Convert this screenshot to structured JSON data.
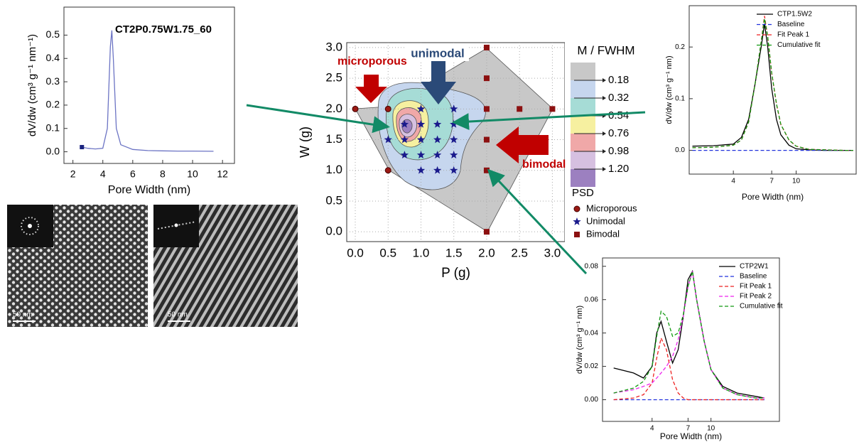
{
  "chart_data": [
    {
      "type": "line",
      "title": "CT2P0.75W1.75_60",
      "x_label": "Pore Width (nm)",
      "y_label": "dV/dw (cm³ g⁻¹ nm⁻¹)",
      "xlim": [
        1.4,
        12.8
      ],
      "ylim": [
        -0.05,
        0.62
      ],
      "xticks": [
        2,
        4,
        6,
        8,
        10,
        12
      ],
      "yticks": [
        {
          "value": 0,
          "label": "0.0"
        },
        0.1,
        0.2,
        0.3,
        0.4,
        0.5
      ],
      "start_marker": "square",
      "x": [
        2.6,
        3.0,
        3.5,
        4.0,
        4.3,
        4.5,
        4.6,
        4.7,
        4.9,
        5.2,
        6,
        7,
        8,
        9,
        10,
        11.4
      ],
      "series": [
        {
          "color": "#6c74c4",
          "values": [
            0.02,
            0.015,
            0.012,
            0.015,
            0.1,
            0.45,
            0.52,
            0.4,
            0.1,
            0.03,
            0.01,
            0.005,
            0.004,
            0.003,
            0.003,
            0.002
          ]
        }
      ]
    },
    {
      "type": "scatter",
      "x_label": "P (g)",
      "y_label": "W (g)",
      "xlim": [
        -0.13,
        3.19
      ],
      "ylim": [
        -0.16,
        3.08
      ],
      "grid": true,
      "xticks": [
        {
          "value": 0,
          "label": "0.0"
        },
        0.5,
        {
          "value": 1,
          "label": "1.0"
        },
        1.5,
        {
          "value": 2,
          "label": "2.0"
        },
        2.5,
        {
          "value": 3,
          "label": "3.0"
        }
      ],
      "yticks": [
        {
          "value": 0,
          "label": "0.0"
        },
        0.5,
        {
          "value": 1,
          "label": "1.0"
        },
        1.5,
        {
          "value": 2,
          "label": "2.0"
        },
        2.5,
        {
          "value": 3,
          "label": "3.0"
        }
      ],
      "legend_title": "PSD",
      "series": [
        {
          "name": "Microporous",
          "marker": "circle",
          "color": "#9a1a14",
          "x": [
            0,
            0.5,
            0.5
          ],
          "values": [
            2,
            2,
            1
          ]
        },
        {
          "name": "Unimodal",
          "marker": "star",
          "color": "#1a1a8c",
          "x": [
            0.5,
            0.75,
            0.75,
            0.75,
            1,
            1,
            1,
            1,
            1,
            1.25,
            1.25,
            1.25,
            1.25,
            1.5,
            1.5,
            1.5,
            1.5,
            1.5
          ],
          "values": [
            1.5,
            1.75,
            1.5,
            1.25,
            2,
            1.75,
            1.5,
            1.25,
            1,
            1.75,
            1.5,
            1.25,
            1,
            2,
            1.75,
            1.5,
            1.25,
            1
          ]
        },
        {
          "name": "Bimodal",
          "marker": "square",
          "color": "#8c1010",
          "x": [
            2,
            2,
            2,
            2,
            2,
            2,
            2.5,
            3
          ],
          "values": [
            3,
            2.5,
            2,
            1.5,
            1,
            0,
            2,
            2
          ]
        }
      ],
      "colorbar": {
        "title": "M / FWHM",
        "levels": [
          0.18,
          0.32,
          0.54,
          0.76,
          0.98,
          {
            "value": 1.2,
            "label": "1.20"
          }
        ],
        "colors": [
          "#c8c8c8",
          "#c6d6ee",
          "#a6dcd6",
          "#f6f0a0",
          "#f0a8a8",
          "#d6c0e0",
          "#9c80c0"
        ]
      },
      "annotations": [
        "unimodal",
        "microporous",
        "bimodal"
      ]
    },
    {
      "type": "line",
      "x_label": "Pore Width (nm)",
      "y_label": "dV/dw (cm³ g⁻¹ nm)",
      "xscale": "log",
      "legend": "upper right",
      "xlim": [
        2.1,
        24
      ],
      "ylim": [
        -0.046,
        0.28
      ],
      "xticks": [
        4,
        7,
        10
      ],
      "yticks": [
        {
          "value": 0,
          "label": "0.0"
        },
        0.1,
        0.2
      ],
      "x": [
        2.2,
        3,
        4,
        4.5,
        5,
        5.5,
        6,
        6.3,
        6.6,
        7,
        7.5,
        8,
        9,
        10,
        12,
        15,
        20,
        23
      ],
      "series": [
        {
          "name": "CTP1.5W2",
          "color": "#000000",
          "dash": false,
          "values": [
            0.008,
            0.009,
            0.012,
            0.025,
            0.06,
            0.13,
            0.2,
            0.245,
            0.2,
            0.12,
            0.06,
            0.03,
            0.01,
            0.003,
            0.001,
            0,
            0,
            0
          ]
        },
        {
          "name": "Baseline",
          "color": "#2233dd",
          "dash": true,
          "values": [
            0,
            0,
            0,
            0,
            0,
            0,
            0,
            0,
            0,
            0,
            0,
            0,
            0,
            0,
            0,
            0,
            0,
            0
          ]
        },
        {
          "name": "Fit Peak 1",
          "color": "#ee2222",
          "dash": true,
          "values": [
            0.005,
            0.006,
            0.01,
            0.02,
            0.055,
            0.13,
            0.21,
            0.26,
            0.22,
            0.15,
            0.09,
            0.05,
            0.02,
            0.008,
            0.002,
            0.001,
            0,
            0
          ]
        },
        {
          "name": "Cumulative fit",
          "color": "#119911",
          "dash": true,
          "values": [
            0.005,
            0.006,
            0.01,
            0.02,
            0.055,
            0.13,
            0.21,
            0.255,
            0.22,
            0.15,
            0.09,
            0.05,
            0.02,
            0.008,
            0.002,
            0.001,
            0,
            0
          ]
        }
      ]
    },
    {
      "type": "line",
      "x_label": "Pore Width (nm)",
      "y_label": "dV/dw (cm³ g⁻¹ nm)",
      "xscale": "log",
      "legend": "upper right",
      "xlim": [
        1.85,
        29
      ],
      "ylim": [
        -0.013,
        0.085
      ],
      "xticks": [
        4,
        7,
        10
      ],
      "yticks": [
        {
          "value": 0,
          "label": "0.00"
        },
        {
          "value": 0.02,
          "label": "0.02"
        },
        {
          "value": 0.04,
          "label": "0.04"
        },
        {
          "value": 0.06,
          "label": "0.06"
        },
        {
          "value": 0.08,
          "label": "0.08"
        }
      ],
      "x": [
        2.2,
        3,
        3.5,
        4,
        4.3,
        4.6,
        5,
        5.5,
        6,
        6.5,
        7,
        7.5,
        8,
        9,
        10,
        12,
        15,
        20,
        23
      ],
      "series": [
        {
          "name": "CTP2W1",
          "color": "#000000",
          "dash": false,
          "values": [
            0.019,
            0.016,
            0.013,
            0.02,
            0.04,
            0.047,
            0.035,
            0.022,
            0.03,
            0.05,
            0.072,
            0.077,
            0.06,
            0.035,
            0.018,
            0.008,
            0.004,
            0.002,
            0.001
          ]
        },
        {
          "name": "Baseline",
          "color": "#2233dd",
          "dash": true,
          "values": [
            0,
            0,
            0,
            0,
            0,
            0,
            0,
            0,
            0,
            0,
            0,
            0,
            0,
            0,
            0,
            0,
            0,
            0,
            0
          ]
        },
        {
          "name": "Fit Peak 1",
          "color": "#ee2222",
          "dash": true,
          "values": [
            0,
            0.001,
            0.003,
            0.01,
            0.025,
            0.037,
            0.03,
            0.012,
            0.004,
            0.001,
            0,
            0,
            0,
            0,
            0,
            0,
            0,
            0,
            0
          ]
        },
        {
          "name": "Fit Peak 2",
          "color": "#ee22ee",
          "dash": true,
          "values": [
            0.004,
            0.006,
            0.008,
            0.01,
            0.013,
            0.016,
            0.02,
            0.026,
            0.036,
            0.05,
            0.068,
            0.077,
            0.06,
            0.035,
            0.018,
            0.007,
            0.003,
            0.001,
            0.001
          ]
        },
        {
          "name": "Cumulative fit",
          "color": "#119911",
          "dash": true,
          "values": [
            0.004,
            0.007,
            0.011,
            0.02,
            0.038,
            0.053,
            0.05,
            0.038,
            0.04,
            0.051,
            0.068,
            0.077,
            0.06,
            0.035,
            0.018,
            0.007,
            0.003,
            0.001,
            0.001
          ]
        }
      ]
    }
  ],
  "micrographs": [
    {
      "scale_label": "50 nm"
    },
    {
      "scale_label": "50 nm"
    }
  ]
}
